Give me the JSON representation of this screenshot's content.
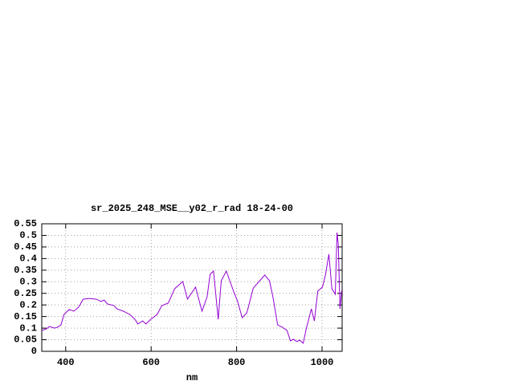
{
  "chart_data": {
    "type": "line",
    "title": "sr_2025_248_MSE__y02_r_rad 18-24-00",
    "x_label": "nm",
    "x": [
      344,
      355,
      362,
      374,
      381,
      389,
      396,
      408,
      419,
      430,
      441,
      456,
      471,
      483,
      490,
      498,
      513,
      520,
      535,
      550,
      562,
      569,
      580,
      588,
      599,
      614,
      625,
      640,
      655,
      674,
      685,
      704,
      719,
      731,
      738,
      746,
      757,
      764,
      776,
      794,
      802,
      813,
      824,
      839,
      854,
      866,
      877,
      885,
      896,
      907,
      918,
      926,
      933,
      941,
      948,
      956,
      963,
      975,
      982,
      990,
      1001,
      1008,
      1016,
      1023,
      1031,
      1035,
      1038,
      1042,
      1046
    ],
    "series": [
      {
        "color": "#9400d3",
        "values": [
          0.09,
          0.097,
          0.107,
          0.1,
          0.104,
          0.114,
          0.159,
          0.18,
          0.173,
          0.19,
          0.225,
          0.228,
          0.225,
          0.215,
          0.221,
          0.204,
          0.197,
          0.183,
          0.173,
          0.159,
          0.138,
          0.118,
          0.131,
          0.118,
          0.138,
          0.159,
          0.197,
          0.208,
          0.27,
          0.301,
          0.225,
          0.277,
          0.173,
          0.235,
          0.332,
          0.346,
          0.138,
          0.304,
          0.346,
          0.253,
          0.218,
          0.145,
          0.166,
          0.273,
          0.304,
          0.329,
          0.304,
          0.235,
          0.114,
          0.104,
          0.09,
          0.045,
          0.052,
          0.042,
          0.048,
          0.035,
          0.097,
          0.183,
          0.131,
          0.26,
          0.277,
          0.329,
          0.419,
          0.27,
          0.246,
          0.512,
          0.46,
          0.183,
          0.263
        ]
      }
    ],
    "xlim": [
      344,
      1047
    ],
    "ylim": [
      0,
      0.55
    ],
    "xticks": [
      400,
      600,
      800,
      1000
    ],
    "yticks": [
      0,
      0.05,
      0.1,
      0.15,
      0.2,
      0.25,
      0.3,
      0.35,
      0.4,
      0.45,
      0.5,
      0.55
    ],
    "grid": true
  }
}
